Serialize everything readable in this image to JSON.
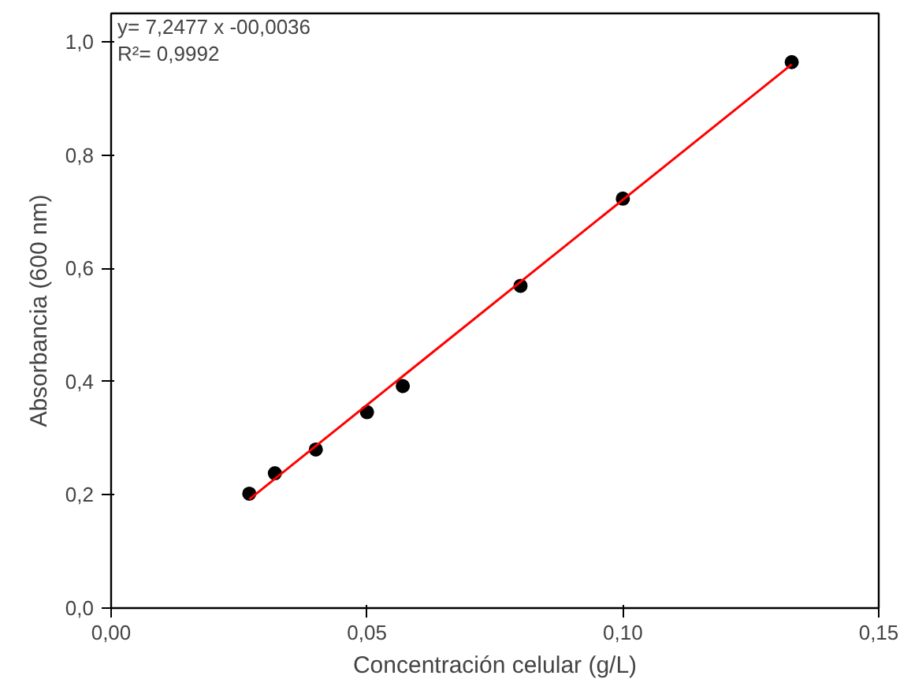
{
  "chart_data": {
    "type": "scatter",
    "xlabel": "Concentración celular (g/L)",
    "ylabel": "Absorbancia (600 nm)",
    "annotations": [
      "y= 7,2477 x -00,0036",
      "R²= 0,9992"
    ],
    "xlim": [
      0,
      0.15
    ],
    "ylim": [
      0,
      1.05
    ],
    "xticks": [
      {
        "value": 0,
        "label": "0,00"
      },
      {
        "value": 0.05,
        "label": "0,05"
      },
      {
        "value": 0.1,
        "label": "0,10"
      },
      {
        "value": 0.15,
        "label": "0,15"
      }
    ],
    "yticks": [
      {
        "value": 0,
        "label": "0,0"
      },
      {
        "value": 0.2,
        "label": "0,2"
      },
      {
        "value": 0.4,
        "label": "0,4"
      },
      {
        "value": 0.6,
        "label": "0,6"
      },
      {
        "value": 0.8,
        "label": "0,8"
      },
      {
        "value": 1.0,
        "label": "1,0"
      }
    ],
    "grid": false,
    "series": [
      {
        "marker": "circle",
        "color": "#000000",
        "x": [
          0.027,
          0.032,
          0.04,
          0.05,
          0.057,
          0.08,
          0.1,
          0.133
        ],
        "values": [
          0.202,
          0.238,
          0.28,
          0.346,
          0.392,
          0.569,
          0.723,
          0.964
        ]
      },
      {
        "type": "line",
        "marker": "none",
        "color": "#ff0000",
        "x": [
          0.027,
          0.133
        ],
        "values": [
          0.192,
          0.96
        ]
      }
    ]
  }
}
